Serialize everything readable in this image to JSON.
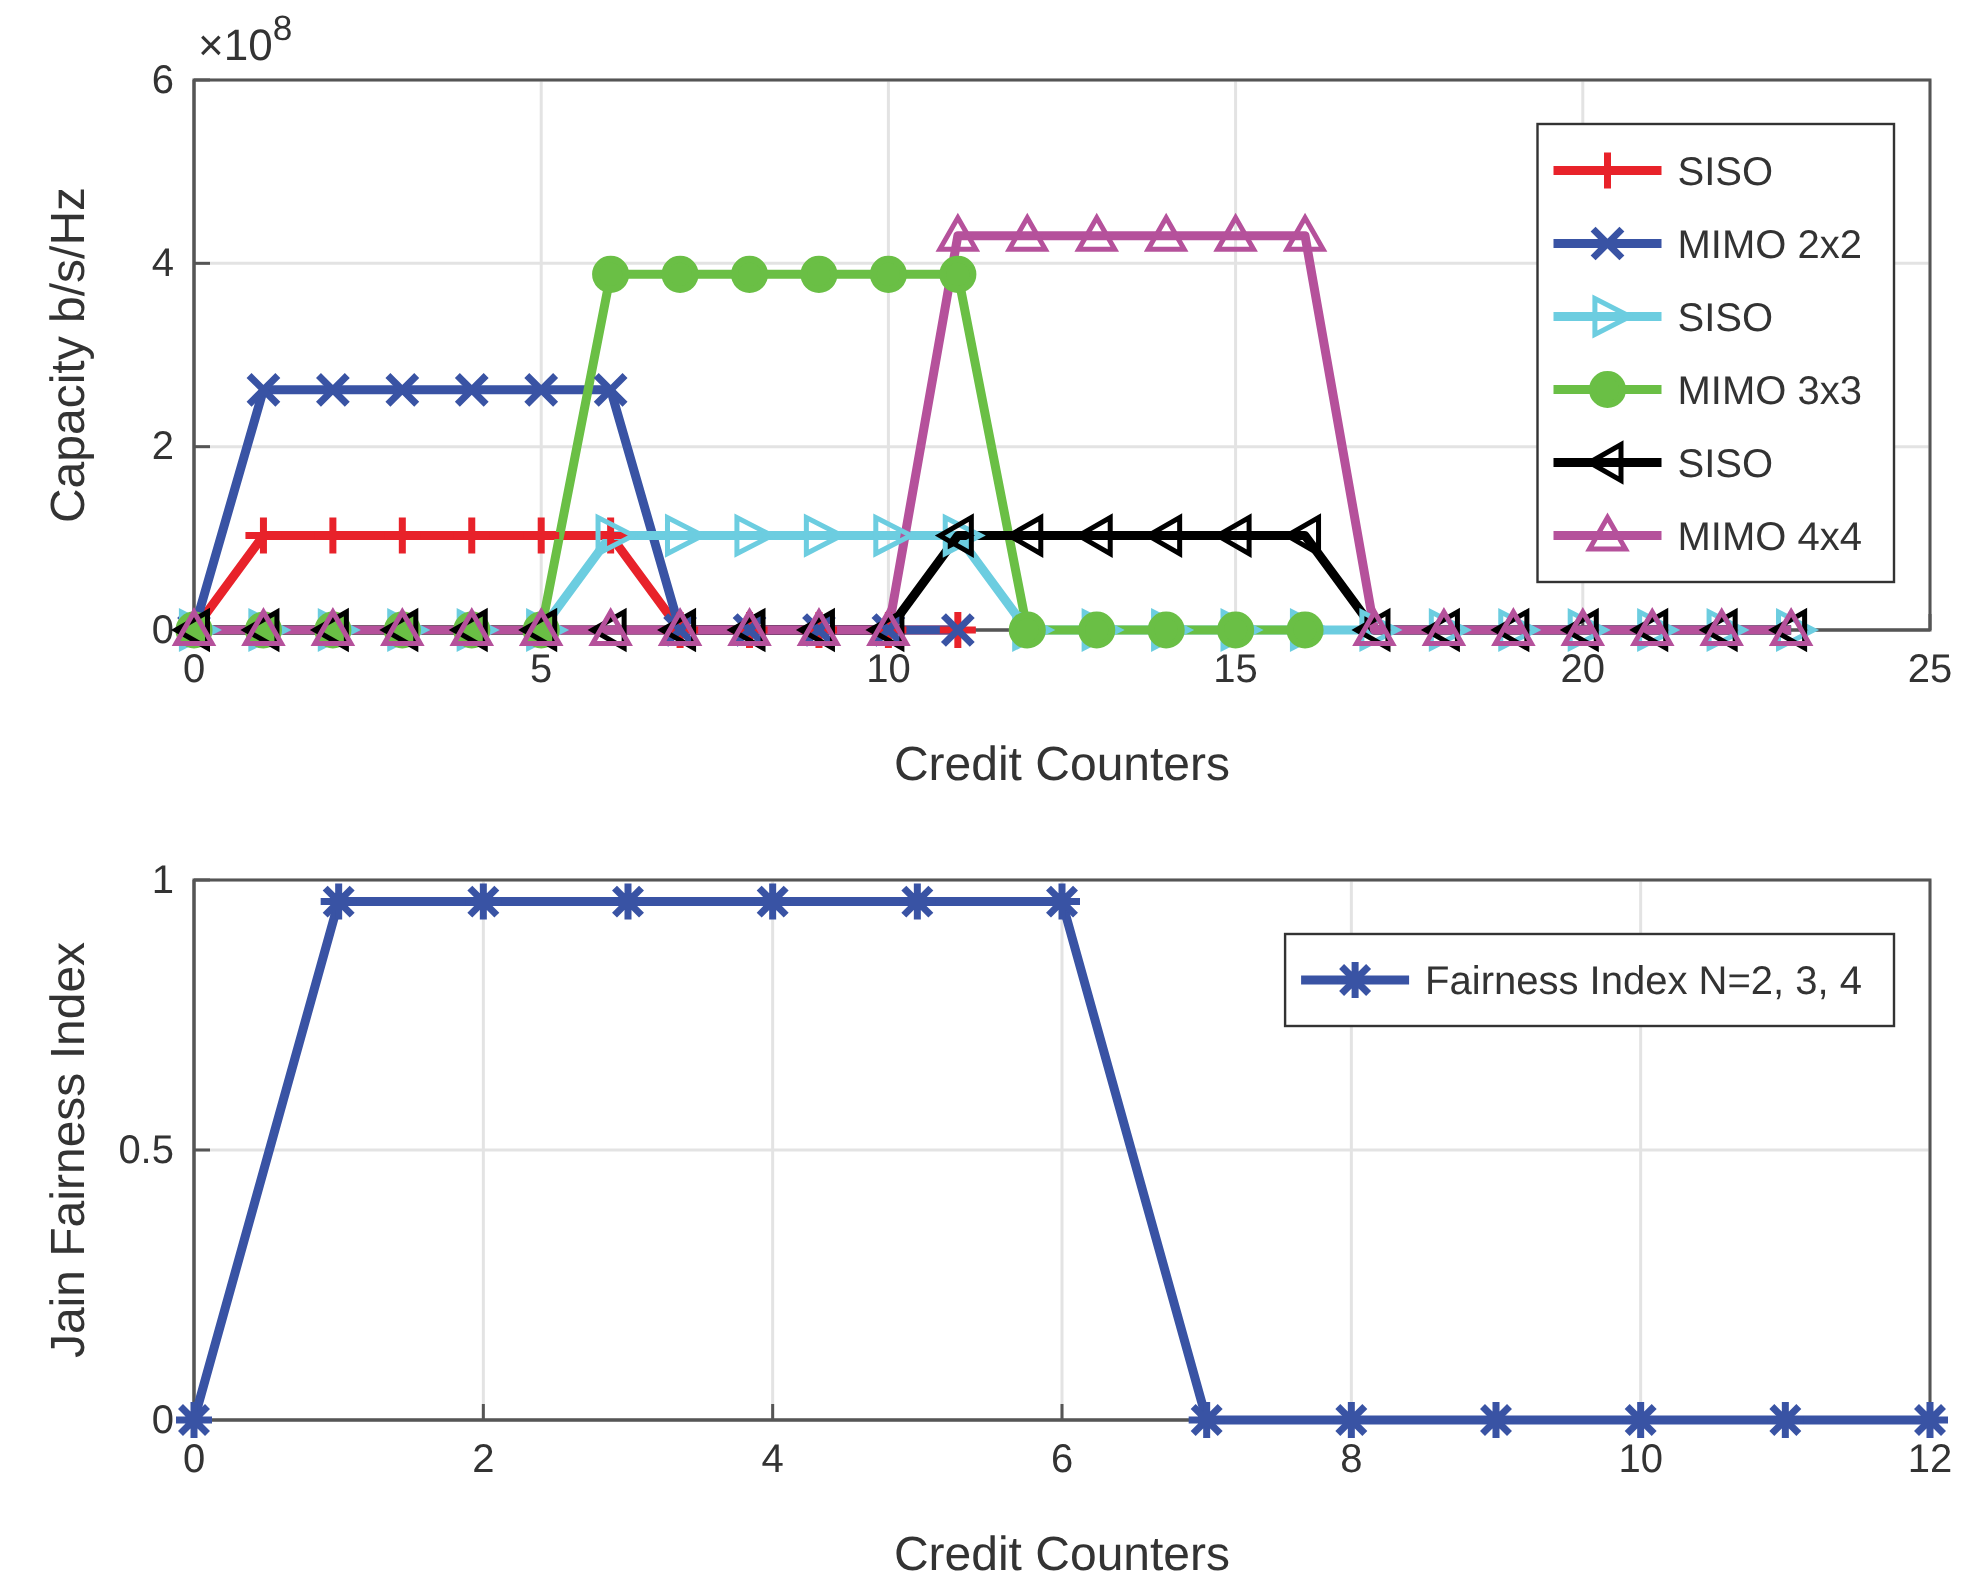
{
  "chart_data": [
    {
      "type": "line",
      "xlabel": "Credit Counters",
      "ylabel": "Capacity b/s/Hz",
      "annotations": [
        "×10$^{8}$"
      ],
      "xlim": [
        0,
        25
      ],
      "xticks": [
        0,
        5,
        10,
        15,
        20,
        25
      ],
      "ylim": [
        0,
        6
      ],
      "yticks": [
        0,
        2,
        4,
        6
      ],
      "grid": true,
      "legend": "top right",
      "line_style": "solid",
      "series": [
        {
          "name": "SISO",
          "color": "#e8222a",
          "marker": "plus",
          "x": [
            0,
            1,
            2,
            3,
            4,
            5,
            6,
            7,
            8,
            9,
            10,
            11
          ],
          "values": [
            0,
            1.03,
            1.03,
            1.03,
            1.03,
            1.03,
            1.03,
            0,
            0,
            0,
            0,
            0
          ]
        },
        {
          "name": "MIMO 2x2",
          "color": "#3953a4",
          "marker": "x",
          "x": [
            0,
            1,
            2,
            3,
            4,
            5,
            6,
            7,
            8,
            9,
            10,
            11
          ],
          "values": [
            0,
            2.62,
            2.62,
            2.62,
            2.62,
            2.62,
            2.62,
            0,
            0,
            0,
            0,
            0
          ]
        },
        {
          "name": "SISO",
          "color": "#6ccde0",
          "marker": "triangle-right",
          "x": [
            0,
            1,
            2,
            3,
            4,
            5,
            6,
            7,
            8,
            9,
            10,
            11,
            12,
            13,
            14,
            15,
            16,
            17,
            18,
            19,
            20,
            21,
            22,
            23
          ],
          "values": [
            0,
            0,
            0,
            0,
            0,
            0,
            1.03,
            1.03,
            1.03,
            1.03,
            1.03,
            1.03,
            0,
            0,
            0,
            0,
            0,
            0,
            0,
            0,
            0,
            0,
            0,
            0
          ]
        },
        {
          "name": "MIMO 3x3",
          "color": "#6abf45",
          "marker": "circle",
          "x": [
            0,
            1,
            2,
            3,
            4,
            5,
            6,
            7,
            8,
            9,
            10,
            11,
            12,
            13,
            14,
            15,
            16
          ],
          "values": [
            0,
            0,
            0,
            0,
            0,
            0,
            3.88,
            3.88,
            3.88,
            3.88,
            3.88,
            3.88,
            0,
            0,
            0,
            0,
            0
          ]
        },
        {
          "name": "SISO",
          "color": "#000000",
          "marker": "triangle-left",
          "x": [
            0,
            1,
            2,
            3,
            4,
            5,
            6,
            7,
            8,
            9,
            10,
            11,
            12,
            13,
            14,
            15,
            16,
            17,
            18,
            19,
            20,
            21,
            22,
            23
          ],
          "values": [
            0,
            0,
            0,
            0,
            0,
            0,
            0,
            0,
            0,
            0,
            0,
            1.03,
            1.03,
            1.03,
            1.03,
            1.03,
            1.03,
            0,
            0,
            0,
            0,
            0,
            0,
            0
          ]
        },
        {
          "name": "MIMO 4x4",
          "color": "#b5519b",
          "marker": "triangle",
          "x": [
            0,
            1,
            2,
            3,
            4,
            5,
            6,
            7,
            8,
            9,
            10,
            11,
            12,
            13,
            14,
            15,
            16,
            17,
            18,
            19,
            20,
            21,
            22,
            23
          ],
          "values": [
            0,
            0,
            0,
            0,
            0,
            0,
            0,
            0,
            0,
            0,
            0,
            4.3,
            4.3,
            4.3,
            4.3,
            4.3,
            4.3,
            0,
            0,
            0,
            0,
            0,
            0,
            0
          ]
        }
      ]
    },
    {
      "type": "line",
      "xlabel": "Credit Counters",
      "ylabel": "Jain Fairness Index",
      "xlim": [
        0,
        12
      ],
      "xticks": [
        0,
        2,
        4,
        6,
        8,
        10,
        12
      ],
      "ylim": [
        0,
        1
      ],
      "yticks": [
        0,
        0.5,
        1
      ],
      "grid": true,
      "legend": "top right",
      "line_style": "solid",
      "series": [
        {
          "name": "Fairness Index N=2, 3, 4",
          "color": "#3953a4",
          "marker": "cross",
          "x": [
            0,
            1,
            2,
            3,
            4,
            5,
            6,
            7,
            8,
            9,
            10,
            11,
            12
          ],
          "values": [
            0,
            0.96,
            0.96,
            0.96,
            0.96,
            0.96,
            0.96,
            0,
            0,
            0,
            0,
            0,
            0
          ]
        }
      ]
    }
  ]
}
